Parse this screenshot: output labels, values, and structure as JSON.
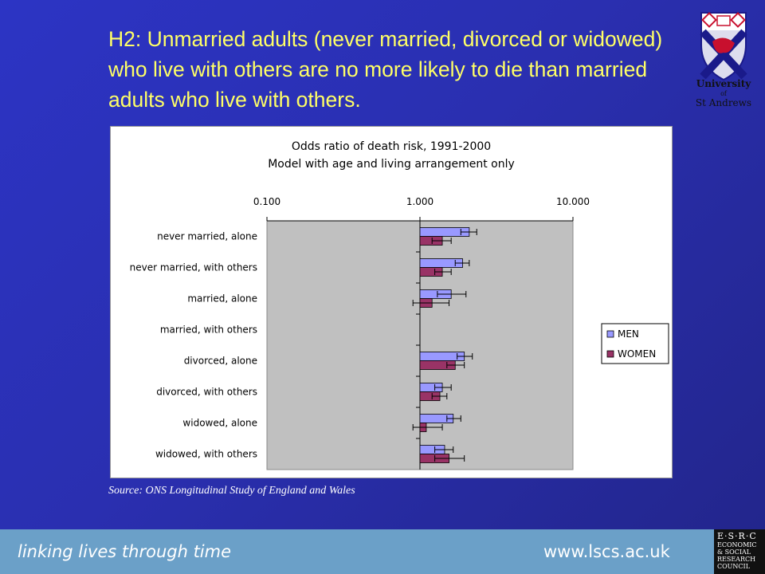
{
  "slide": {
    "title": "H2: Unmarried adults (never married, divorced or widowed) who live with others are no more likely to die than married adults who live with others.",
    "source": "Source: ONS Longitudinal Study of England and Wales",
    "footer_tagline": "linking lives through time",
    "footer_url": "www.lscs.ac.uk",
    "background_color": "#2a2fb0",
    "title_color": "#ffff66",
    "footer_color": "#6ba0c8"
  },
  "logo": {
    "icon": "university-shield-icon",
    "line1": "University",
    "line2": "of",
    "line3": "St Andrews"
  },
  "esrc_logo": {
    "icon": "esrc-logo",
    "lines": [
      "E·S·R·C",
      "ECONOMIC",
      "& SOCIAL",
      "RESEARCH",
      "COUNCIL"
    ]
  },
  "chart_data": {
    "type": "bar",
    "orientation": "horizontal",
    "title": "Odds ratio of death risk, 1991-2000",
    "subtitle": "Model with age and living arrangement only",
    "x_scale": "log",
    "xlim": [
      0.1,
      10
    ],
    "x_ticks": [
      0.1,
      1,
      10
    ],
    "x_tick_labels": [
      "0.100",
      "1.000",
      "10.000"
    ],
    "x_axis_position": "top",
    "baseline": 1,
    "categories": [
      "never married, alone",
      "never married, with others",
      "married, alone",
      "married, with others",
      "divorced, alone",
      "divorced, with others",
      "widowed, alone",
      "widowed, with others"
    ],
    "series": [
      {
        "name": "MEN",
        "color": "#9999ff",
        "values": [
          2.1,
          1.9,
          1.6,
          1.0,
          1.95,
          1.4,
          1.65,
          1.45
        ],
        "error_low": [
          1.85,
          1.7,
          1.3,
          1.0,
          1.75,
          1.25,
          1.5,
          1.25
        ],
        "error_high": [
          2.35,
          2.1,
          2.0,
          1.0,
          2.2,
          1.6,
          1.85,
          1.65
        ]
      },
      {
        "name": "WOMEN",
        "color": "#993366",
        "values": [
          1.4,
          1.4,
          1.2,
          1.0,
          1.7,
          1.35,
          1.1,
          1.55
        ],
        "error_low": [
          1.2,
          1.25,
          0.9,
          1.0,
          1.5,
          1.2,
          0.9,
          1.25
        ],
        "error_high": [
          1.6,
          1.6,
          1.55,
          1.0,
          1.95,
          1.5,
          1.4,
          1.95
        ]
      }
    ],
    "grid": false,
    "plot_background": "#c0c0c0",
    "legend": "right"
  }
}
